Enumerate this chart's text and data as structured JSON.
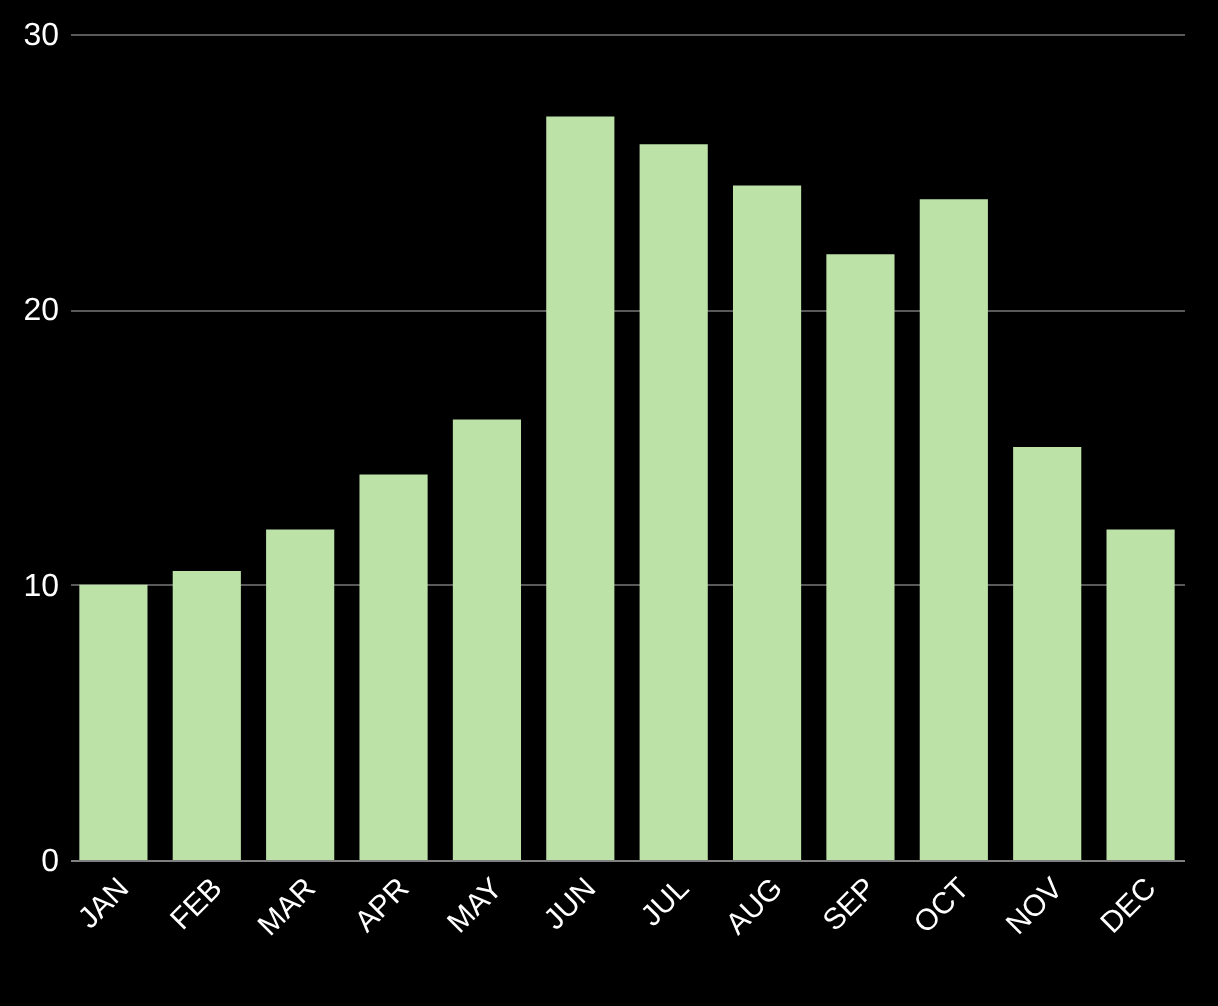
{
  "chart_data": {
    "type": "bar",
    "categories": [
      "JAN",
      "FEB",
      "MAR",
      "APR",
      "MAY",
      "JUN",
      "JUL",
      "AUG",
      "SEP",
      "OCT",
      "NOV",
      "DEC"
    ],
    "values": [
      10,
      10.5,
      12,
      14,
      16,
      27,
      26,
      24.5,
      22,
      24,
      15,
      12
    ],
    "color": "#bde2a8",
    "ylim": [
      0,
      30
    ],
    "yticks": [
      0,
      10,
      20,
      30
    ],
    "grid": "y"
  }
}
